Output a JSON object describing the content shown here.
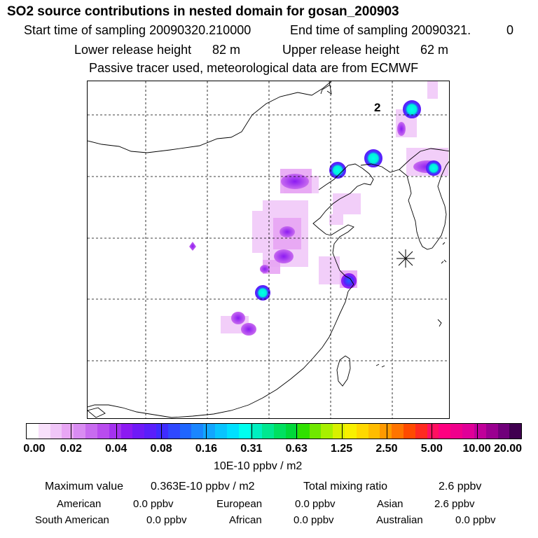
{
  "header": {
    "title": "SO2 source contributions in nested domain for gosan_200903",
    "start_label": "Start time of sampling 20090320.210000",
    "end_label": "End time of sampling 20090321.",
    "end_suffix": "0",
    "lower_label": "Lower release height",
    "lower_value": "82 m",
    "upper_label": "Upper release height",
    "upper_value": "62 m",
    "note": "Passive tracer used, meteorological data are from ECMWF"
  },
  "map": {
    "marker_label": "2",
    "receptor": "gosan",
    "sources": [
      {
        "name": "north-peak",
        "intensity": "high"
      },
      {
        "name": "beijing",
        "intensity": "high"
      },
      {
        "name": "bohai",
        "intensity": "high"
      },
      {
        "name": "northeast",
        "intensity": "high"
      },
      {
        "name": "shanghai",
        "intensity": "high"
      },
      {
        "name": "central",
        "intensity": "high"
      },
      {
        "name": "south-central",
        "intensity": "medium"
      }
    ]
  },
  "colorbar": {
    "colors": [
      "#ffffff",
      "#f8e0fb",
      "#f0c6f8",
      "#e8a6f4",
      "#d98cf2",
      "#c86bef",
      "#b94cee",
      "#a432ef",
      "#8c1af2",
      "#6f1af7",
      "#5a1ffb",
      "#3f2cff",
      "#2f48ff",
      "#1f66ff",
      "#1a86ff",
      "#11a6ff",
      "#08c4ff",
      "#00e0ff",
      "#00ffef",
      "#00f0c0",
      "#00e890",
      "#00e060",
      "#00d83a",
      "#30e000",
      "#70e800",
      "#a8f000",
      "#d8f000",
      "#f8f000",
      "#ffd800",
      "#ffbc00",
      "#ff9a00",
      "#ff7400",
      "#ff4a00",
      "#ff2a20",
      "#ff1060",
      "#ff0080",
      "#f0008c",
      "#e00098",
      "#c0009a",
      "#9a0090",
      "#70007a",
      "#400050"
    ],
    "tick_labels": [
      "0.00",
      "0.02",
      "0.04",
      "0.08",
      "0.16",
      "0.31",
      "0.63",
      "1.25",
      "2.50",
      "5.00",
      "10.00",
      "20.00"
    ],
    "unit": "10E-10 ppbv / m2"
  },
  "stats": {
    "max_label": "Maximum value",
    "max_value": "0.363E-10 ppbv / m2",
    "total_label": "Total mixing ratio",
    "total_value": "2.6 ppbv",
    "regions": [
      {
        "name": "American",
        "value": "0.0 ppbv"
      },
      {
        "name": "European",
        "value": "0.0 ppbv"
      },
      {
        "name": "Asian",
        "value": "2.6 ppbv"
      },
      {
        "name": "South American",
        "value": "0.0 ppbv"
      },
      {
        "name": "African",
        "value": "0.0 ppbv"
      },
      {
        "name": "Australian",
        "value": "0.0 ppbv"
      }
    ]
  }
}
